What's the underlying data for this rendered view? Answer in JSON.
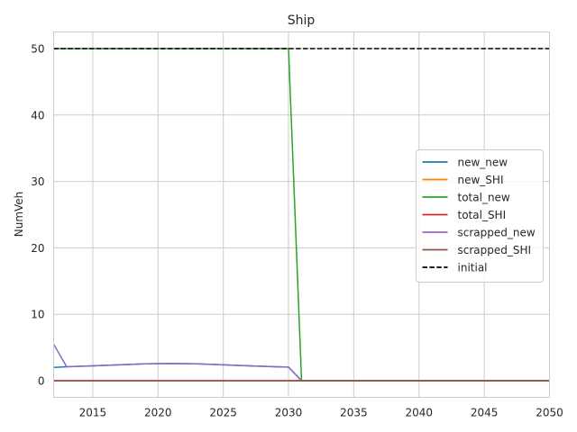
{
  "chart_data": {
    "type": "line",
    "title": "Ship",
    "xlabel": "",
    "ylabel": "NumVeh",
    "xlim": [
      2012,
      2050
    ],
    "ylim": [
      -2.5,
      52.5
    ],
    "xticks": [
      2015,
      2020,
      2025,
      2030,
      2035,
      2040,
      2045,
      2050
    ],
    "yticks": [
      0,
      10,
      20,
      30,
      40,
      50
    ],
    "grid": true,
    "legend_position": "center-right",
    "series": [
      {
        "name": "new_new",
        "color": "#1f77b4",
        "style": "solid",
        "points": [
          [
            2012,
            2.0
          ],
          [
            2013,
            2.1
          ],
          [
            2015,
            2.25
          ],
          [
            2017,
            2.4
          ],
          [
            2019,
            2.55
          ],
          [
            2021,
            2.6
          ],
          [
            2023,
            2.55
          ],
          [
            2025,
            2.4
          ],
          [
            2027,
            2.25
          ],
          [
            2029,
            2.1
          ],
          [
            2030,
            2.05
          ],
          [
            2031,
            0
          ],
          [
            2050,
            0
          ]
        ]
      },
      {
        "name": "new_SHI",
        "color": "#ff7f0e",
        "style": "solid",
        "points": [
          [
            2012,
            0
          ],
          [
            2050,
            0
          ]
        ]
      },
      {
        "name": "total_new",
        "color": "#2ca02c",
        "style": "solid",
        "points": [
          [
            2012,
            50
          ],
          [
            2030,
            50
          ],
          [
            2031,
            0
          ],
          [
            2050,
            0
          ]
        ]
      },
      {
        "name": "total_SHI",
        "color": "#d62728",
        "style": "solid",
        "points": [
          [
            2012,
            0
          ],
          [
            2050,
            0
          ]
        ]
      },
      {
        "name": "scrapped_new",
        "color": "#9467bd",
        "style": "solid",
        "points": [
          [
            2012,
            5.5
          ],
          [
            2013,
            2.1
          ],
          [
            2015,
            2.25
          ],
          [
            2017,
            2.4
          ],
          [
            2019,
            2.55
          ],
          [
            2021,
            2.6
          ],
          [
            2023,
            2.55
          ],
          [
            2025,
            2.4
          ],
          [
            2027,
            2.25
          ],
          [
            2029,
            2.1
          ],
          [
            2030,
            2.05
          ],
          [
            2031,
            0
          ],
          [
            2050,
            0
          ]
        ]
      },
      {
        "name": "scrapped_SHI",
        "color": "#8c564b",
        "style": "solid",
        "points": [
          [
            2012,
            0
          ],
          [
            2050,
            0
          ]
        ]
      },
      {
        "name": "initial",
        "color": "#000000",
        "style": "dashed",
        "points": [
          [
            2012,
            50
          ],
          [
            2050,
            50
          ]
        ]
      }
    ]
  }
}
